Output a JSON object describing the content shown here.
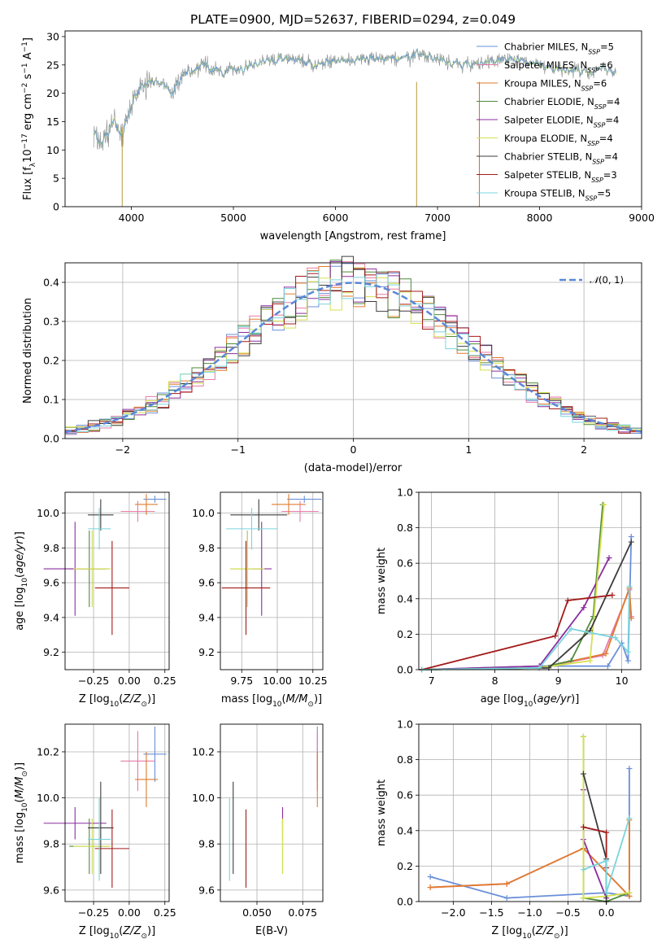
{
  "title": "PLATE=0900, MJD=52637, FIBERID=0294, z=0.049",
  "models": [
    {
      "label": "Chabrier MILES, N",
      "nssp": "=5",
      "color": "#6a8fd8",
      "age": 10.08,
      "ageErr": 0.02,
      "z": 0.18,
      "zErr": 0.08,
      "mass": 10.19,
      "massErr": 0.12,
      "ebv": 0.083
    },
    {
      "label": "Salpeter MILES, N",
      "nssp": "=6",
      "color": "#e77aa8",
      "age": 10.01,
      "ageErr": 0.06,
      "z": 0.06,
      "zErr": 0.12,
      "mass": 10.16,
      "massErr": 0.13,
      "ebv": 0.083
    },
    {
      "label": "Kroupa MILES, N",
      "nssp": "=6",
      "color": "#df7b2e",
      "age": 10.05,
      "ageErr": 0.06,
      "z": 0.12,
      "zErr": 0.08,
      "mass": 10.08,
      "massErr": 0.12,
      "ebv": 0.083
    },
    {
      "label": "Chabrier ELODIE, N",
      "nssp": "=4",
      "color": "#4f8a3a",
      "age": 9.68,
      "ageErr": 0.22,
      "z": -0.28,
      "zErr": 0.14,
      "mass": 9.79,
      "massErr": 0.12,
      "ebv": 0.064
    },
    {
      "label": "Salpeter ELODIE, N",
      "nssp": "=4",
      "color": "#8b2da0",
      "age": 9.68,
      "ageErr": 0.27,
      "z": -0.38,
      "zErr": 0.22,
      "mass": 9.89,
      "massErr": 0.07,
      "ebv": 0.064
    },
    {
      "label": "Kroupa ELODIE, N",
      "nssp": "=4",
      "color": "#d6e04e",
      "age": 9.68,
      "ageErr": 0.22,
      "z": -0.26,
      "zErr": 0.13,
      "mass": 9.79,
      "massErr": 0.12,
      "ebv": 0.064
    },
    {
      "label": "Chabrier STELIB, N",
      "nssp": "=4",
      "color": "#3c3c3c",
      "age": 9.99,
      "ageErr": 0.09,
      "z": -0.2,
      "zErr": 0.09,
      "mass": 9.87,
      "massErr": 0.2,
      "ebv": 0.037
    },
    {
      "label": "Salpeter STELIB, N",
      "nssp": "=3",
      "color": "#a31a1a",
      "age": 9.57,
      "ageErr": 0.27,
      "z": -0.12,
      "zErr": 0.12,
      "mass": 9.78,
      "massErr": 0.17,
      "ebv": 0.044
    },
    {
      "label": "Kroupa STELIB, N",
      "nssp": "=5",
      "color": "#7ad4dc",
      "age": 9.91,
      "ageErr": 0.12,
      "z": -0.21,
      "zErr": 0.08,
      "mass": 9.82,
      "massErr": 0.18,
      "ebv": 0.035
    }
  ],
  "gaussian": {
    "label": "(0, 1)",
    "color": "#5b87d8"
  },
  "chart_data": [
    {
      "type": "line",
      "title": "PLATE=0900, MJD=52637, FIBERID=0294, z=0.049",
      "xlabel": "wavelength [Angstrom, rest frame]",
      "ylabel": "Flux [fλ10⁻¹⁷ erg cm⁻² s⁻¹ A⁻¹]",
      "xlim": [
        3350,
        9000
      ],
      "ylim": [
        0,
        31
      ],
      "xticks": [
        4000,
        5000,
        6000,
        7000,
        8000,
        9000
      ],
      "yticks": [
        0,
        5,
        10,
        15,
        20,
        25,
        30
      ],
      "spectrum_anchor_x": [
        3630,
        3700,
        3750,
        3800,
        3850,
        3900,
        3950,
        4000,
        4100,
        4200,
        4300,
        4400,
        4500,
        4600,
        4700,
        4800,
        5000,
        5200,
        5400,
        5600,
        5800,
        6000,
        6200,
        6400,
        6600,
        6800,
        7000,
        7200,
        7400,
        7600,
        7800,
        8000,
        8200,
        8400,
        8600,
        8750
      ],
      "spectrum_anchor_y": [
        13,
        11,
        12,
        14,
        15,
        12,
        15,
        18,
        21,
        22,
        22,
        20,
        23,
        24,
        25,
        24,
        24,
        25,
        26,
        26,
        25,
        26,
        26,
        26,
        26,
        27,
        26,
        25,
        25,
        26,
        26,
        25,
        24,
        24,
        24,
        24
      ],
      "grid": false
    },
    {
      "type": "histogram",
      "xlabel": "(data-model)/error",
      "ylabel": "Normed distribution",
      "xlim": [
        -2.5,
        2.5
      ],
      "ylim": [
        0,
        0.45
      ],
      "xticks": [
        -2,
        -1,
        0,
        1,
        2
      ],
      "yticks": [
        0.0,
        0.1,
        0.2,
        0.3,
        0.4
      ],
      "bin_width": 0.1,
      "legend": "top-right",
      "grid": true
    },
    {
      "type": "scatter",
      "xlabel": "Z [log10(Z/Z⊙)]",
      "ylabel": "age  [log10(age/yr)]",
      "xlim": [
        -0.45,
        0.28
      ],
      "ylim": [
        9.1,
        10.12
      ],
      "xticks": [
        -0.25,
        0.0,
        0.25
      ],
      "yticks": [
        9.2,
        9.4,
        9.6,
        9.8,
        10.0
      ]
    },
    {
      "type": "scatter",
      "xlabel": "mass [log10(M/M⊙)]",
      "ylabel": "",
      "xlim": [
        9.6,
        10.32
      ],
      "ylim": [
        9.1,
        10.12
      ],
      "xticks": [
        9.75,
        10.0,
        10.25
      ],
      "yticks": [
        9.2,
        9.4,
        9.6,
        9.8,
        10.0
      ]
    },
    {
      "type": "line",
      "xlabel": "age  [log10(age/yr)]",
      "ylabel": "mass weight",
      "xlim": [
        6.8,
        10.3
      ],
      "ylim": [
        0,
        1.0
      ],
      "xticks": [
        7,
        8,
        9,
        10
      ],
      "yticks": [
        0.0,
        0.2,
        0.4,
        0.6,
        0.8,
        1.0
      ],
      "series": [
        {
          "x": [
            6.85,
            8.7,
            9.78,
            10.0,
            10.1,
            10.15
          ],
          "y": [
            0.0,
            0.02,
            0.02,
            0.15,
            0.05,
            0.75
          ]
        },
        {
          "x": [
            6.85,
            8.7,
            9.7,
            10.12,
            10.15
          ],
          "y": [
            0.0,
            0.01,
            0.08,
            0.45,
            0.3
          ]
        },
        {
          "x": [
            6.85,
            8.7,
            9.75,
            10.12,
            10.15
          ],
          "y": [
            0.0,
            0.01,
            0.09,
            0.46,
            0.29
          ]
        },
        {
          "x": [
            6.85,
            8.7,
            9.2,
            9.55,
            9.7
          ],
          "y": [
            0.0,
            0.01,
            0.05,
            0.3,
            0.93
          ]
        },
        {
          "x": [
            6.85,
            8.7,
            9.4,
            9.8
          ],
          "y": [
            0.0,
            0.02,
            0.35,
            0.63
          ]
        },
        {
          "x": [
            6.85,
            8.7,
            9.5,
            9.72
          ],
          "y": [
            0.0,
            0.01,
            0.05,
            0.93
          ]
        },
        {
          "x": [
            6.85,
            8.85,
            9.5,
            10.15
          ],
          "y": [
            0.0,
            0.01,
            0.22,
            0.72
          ]
        },
        {
          "x": [
            6.85,
            8.95,
            9.15,
            9.85
          ],
          "y": [
            0.0,
            0.19,
            0.39,
            0.42
          ]
        },
        {
          "x": [
            6.85,
            8.7,
            9.2,
            9.9,
            10.1,
            10.12
          ],
          "y": [
            0.0,
            0.01,
            0.23,
            0.18,
            0.1,
            0.47
          ]
        }
      ]
    },
    {
      "type": "scatter",
      "xlabel": "Z [log10(Z/Z⊙)]",
      "ylabel": "mass [log10(M/M⊙)]",
      "xlim": [
        -0.45,
        0.28
      ],
      "ylim": [
        9.55,
        10.32
      ],
      "xticks": [
        -0.25,
        0.0,
        0.25
      ],
      "yticks": [
        9.6,
        9.8,
        10.0,
        10.2
      ]
    },
    {
      "type": "scatter",
      "xlabel": "E(B-V)",
      "ylabel": "",
      "xlim": [
        0.03,
        0.086
      ],
      "ylim": [
        9.55,
        10.32
      ],
      "xticks": [
        0.05,
        0.075
      ],
      "yticks": [
        9.6,
        9.8,
        10.0,
        10.2
      ]
    },
    {
      "type": "line",
      "xlabel": "Z [log10(Z/Z⊙)]",
      "ylabel": "mass weight",
      "xlim": [
        -2.45,
        0.45
      ],
      "ylim": [
        0,
        1.0
      ],
      "xticks": [
        -2.0,
        -1.5,
        -1.0,
        -0.5,
        0.0
      ],
      "yticks": [
        0.0,
        0.2,
        0.4,
        0.6,
        0.8,
        1.0
      ],
      "series": [
        {
          "x": [
            -2.3,
            -1.3,
            0.0,
            0.3,
            0.3
          ],
          "y": [
            0.14,
            0.02,
            0.05,
            0.03,
            0.75
          ]
        },
        {
          "x": [
            -2.3,
            -1.3,
            -0.3,
            0.3
          ],
          "y": [
            0.08,
            0.1,
            0.3,
            0.03
          ]
        },
        {
          "x": [
            -2.3,
            -1.3,
            -0.3,
            0.3,
            0.3
          ],
          "y": [
            0.08,
            0.1,
            0.3,
            0.03,
            0.46
          ]
        },
        {
          "x": [
            -0.3,
            -0.3,
            0.0,
            0.3
          ],
          "y": [
            0.93,
            0.02,
            0.0,
            0.05
          ]
        },
        {
          "x": [
            -0.3,
            -0.3,
            0.0
          ],
          "y": [
            0.63,
            0.35,
            0.02
          ]
        },
        {
          "x": [
            -0.3,
            -0.3,
            0.0,
            0.3
          ],
          "y": [
            0.93,
            0.02,
            0.03,
            0.05
          ]
        },
        {
          "x": [
            -0.3,
            0.0,
            0.0
          ],
          "y": [
            0.72,
            0.24,
            0.0
          ]
        },
        {
          "x": [
            -0.3,
            0.0,
            0.0
          ],
          "y": [
            0.42,
            0.39,
            0.19
          ]
        },
        {
          "x": [
            -0.3,
            0.0,
            0.0,
            0.3
          ],
          "y": [
            0.18,
            0.23,
            0.05,
            0.47
          ]
        }
      ]
    }
  ]
}
